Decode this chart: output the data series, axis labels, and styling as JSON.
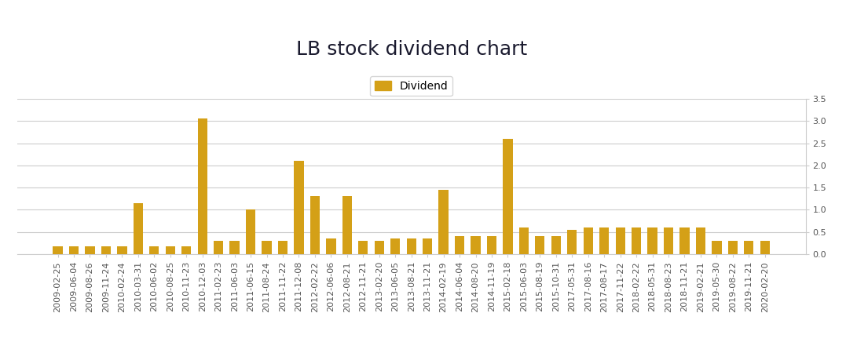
{
  "title": "LB stock dividend chart",
  "legend_label": "Dividend",
  "bar_color": "#D4A017",
  "background_color": "#ffffff",
  "ylim": [
    0,
    3.5
  ],
  "yticks": [
    0,
    0.5,
    1.0,
    1.5,
    2.0,
    2.5,
    3.0,
    3.5
  ],
  "dates": [
    "2009-02-25",
    "2009-06-04",
    "2009-08-26",
    "2009-11-24",
    "2010-02-24",
    "2010-03-31",
    "2010-06-02",
    "2010-08-25",
    "2010-11-23",
    "2010-12-03",
    "2011-02-23",
    "2011-06-03",
    "2011-06-15",
    "2011-08-24",
    "2011-11-22",
    "2011-12-08",
    "2012-02-22",
    "2012-06-06",
    "2012-08-21",
    "2012-11-21",
    "2013-02-20",
    "2013-06-05",
    "2013-08-21",
    "2013-11-21",
    "2014-02-19",
    "2014-06-04",
    "2014-08-20",
    "2014-11-19",
    "2015-02-18",
    "2015-06-03",
    "2015-08-19",
    "2015-10-31",
    "2017-05-31",
    "2017-08-16",
    "2017-08-17",
    "2017-11-22",
    "2018-02-22",
    "2018-05-31",
    "2018-08-23",
    "2018-11-21",
    "2019-02-21",
    "2019-05-30",
    "2019-08-22",
    "2019-11-21",
    "2020-02-20"
  ],
  "values": [
    0.175,
    0.175,
    0.175,
    0.175,
    0.175,
    1.15,
    0.175,
    0.175,
    0.175,
    3.05,
    0.3,
    0.3,
    1.0,
    0.3,
    0.3,
    2.1,
    1.3,
    0.35,
    1.3,
    0.3,
    0.3,
    0.35,
    0.35,
    0.35,
    1.45,
    0.4,
    0.4,
    0.4,
    2.6,
    0.6,
    0.4,
    0.4,
    0.55,
    0.6,
    0.6,
    0.6,
    0.6,
    0.6,
    0.6,
    0.6,
    0.6,
    0.3,
    0.3,
    0.3,
    0.3
  ],
  "grid_color": "#cccccc",
  "tick_color": "#555555",
  "title_color": "#1a1a2e",
  "title_fontsize": 18,
  "tick_fontsize": 8,
  "legend_fontsize": 10
}
